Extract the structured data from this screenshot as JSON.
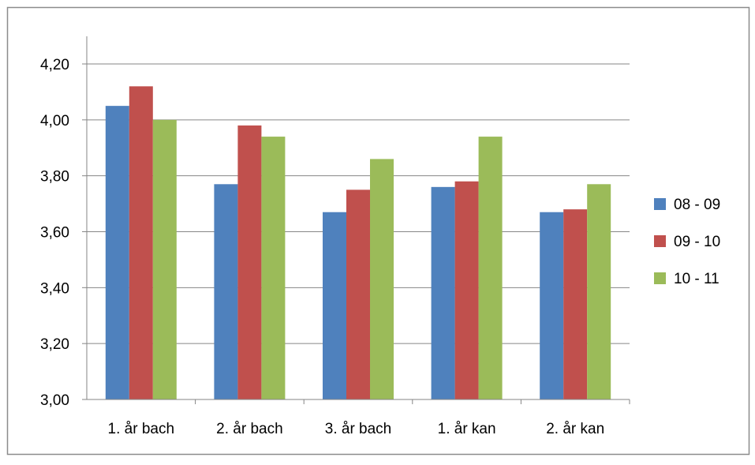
{
  "chart_data": {
    "type": "bar",
    "title": "",
    "xlabel": "",
    "ylabel": "",
    "categories": [
      "1. år  bach",
      "2. år bach",
      "3. år bach",
      "1. år kan",
      "2. år kan"
    ],
    "series": [
      {
        "name": "08 - 09",
        "color": "#4F81BD",
        "values": [
          4.05,
          3.77,
          3.67,
          3.76,
          3.67
        ]
      },
      {
        "name": "09 - 10",
        "color": "#C0504D",
        "values": [
          4.12,
          3.98,
          3.75,
          3.78,
          3.68
        ]
      },
      {
        "name": "10 - 11",
        "color": "#9BBB59",
        "values": [
          4.0,
          3.94,
          3.86,
          3.94,
          3.77
        ]
      }
    ],
    "ylim": [
      3.0,
      4.2
    ],
    "yticks": [
      "3,00",
      "3,20",
      "3,40",
      "3,60",
      "3,80",
      "4,00",
      "4,20"
    ],
    "grid": true,
    "legend_position": "right"
  }
}
